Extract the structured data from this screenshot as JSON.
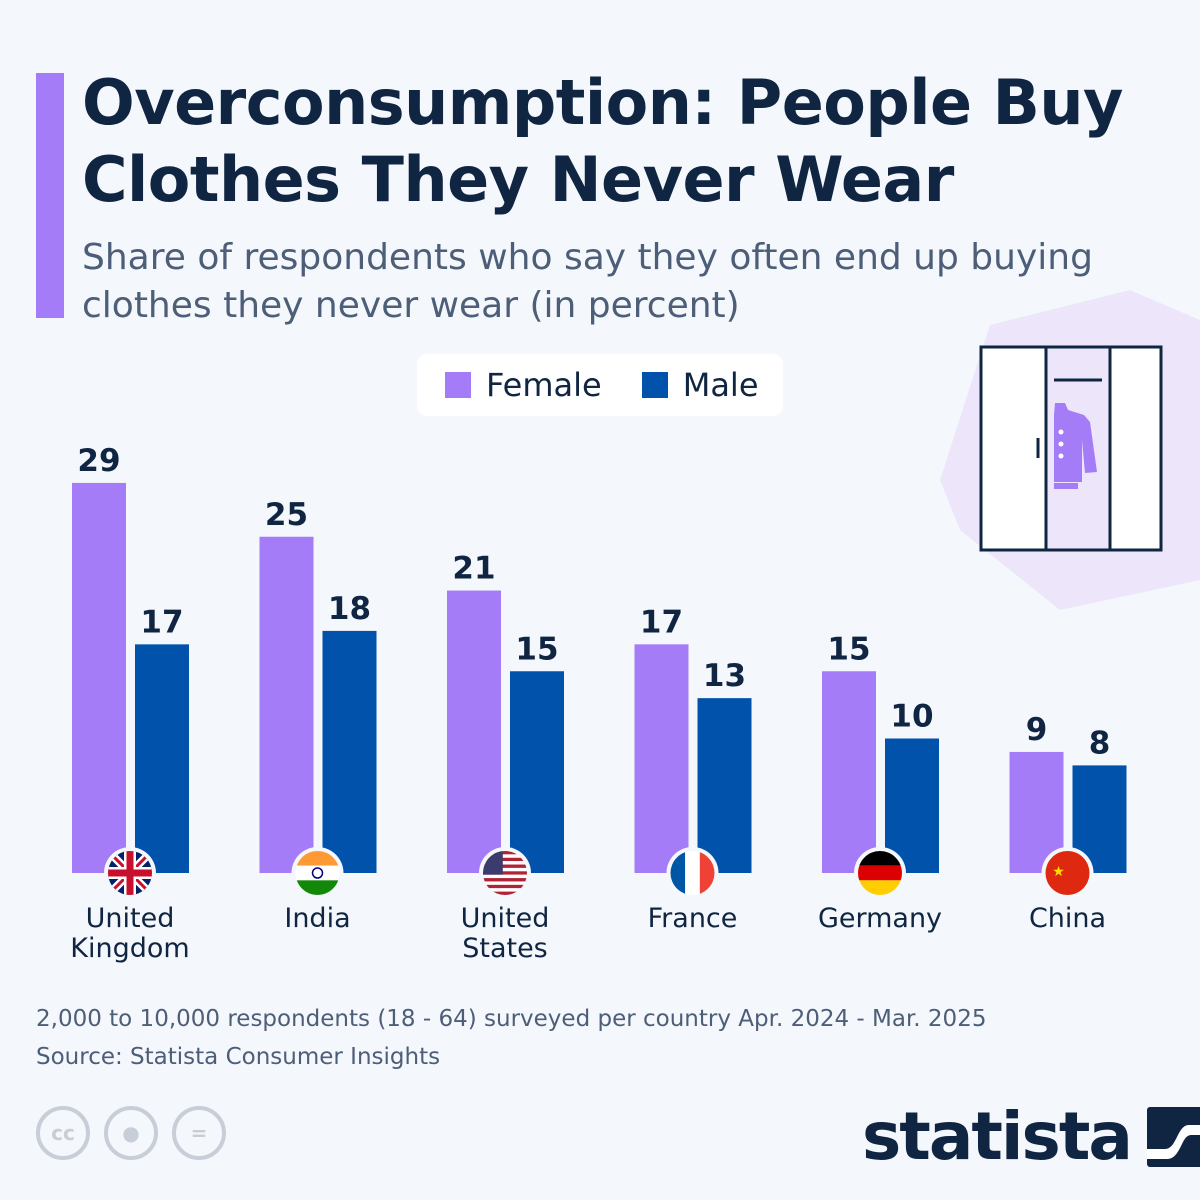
{
  "title": "Overconsumption: People Buy Clothes They Never Wear",
  "subtitle": "Share of respondents who say they often end up buying clothes they never wear (in percent)",
  "colors": {
    "female": "#a57cf7",
    "male": "#0052ab",
    "title": "#0f2542",
    "background": "#f4f7fb"
  },
  "chart_data": {
    "type": "bar",
    "categories": [
      "United Kingdom",
      "India",
      "United States",
      "France",
      "Germany",
      "China"
    ],
    "series": [
      {
        "name": "Female",
        "values": [
          29,
          25,
          21,
          17,
          15,
          9
        ]
      },
      {
        "name": "Male",
        "values": [
          17,
          18,
          15,
          13,
          10,
          8
        ]
      }
    ],
    "flags": [
      "uk-flag",
      "india-flag",
      "us-flag",
      "france-flag",
      "germany-flag",
      "china-flag"
    ],
    "legend": [
      "Female",
      "Male"
    ],
    "legend_position": "top-center",
    "grid": false,
    "ylim": [
      0,
      30
    ]
  },
  "footer": {
    "note": "2,000 to 10,000 respondents (18 - 64) surveyed per country Apr. 2024 - Mar. 2025",
    "source": "Source: Statista Consumer Insights",
    "logo": "statista",
    "license_icons": [
      "cc-icon",
      "attribution-icon",
      "no-derivatives-icon"
    ]
  }
}
